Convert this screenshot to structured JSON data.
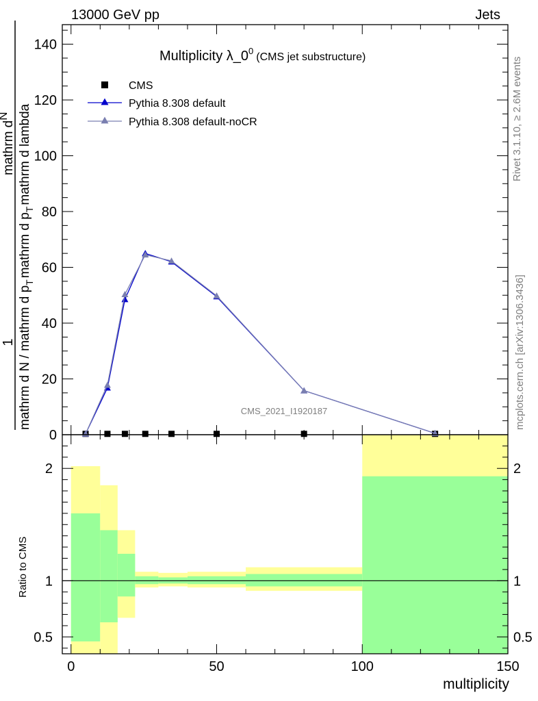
{
  "header": {
    "left": "13000 GeV pp",
    "right": "Jets"
  },
  "side_labels": {
    "rivet": "Rivet 3.1.10, ≥ 2.6M events",
    "mcplots": "mcplots.cern.ch [arXiv:1306.3436]"
  },
  "watermark": "CMS_2021_I1920187",
  "title_main": "Multiplicity λ_0",
  "title_sup": "0",
  "title_sub": "(CMS jet substructure)",
  "ylabel_main": {
    "numerator": "1",
    "line1": "mathrm d N / mathrm d p",
    "line1_sub": "T",
    "line2": "mathrm d p",
    "line2_sub": "T",
    "line2_rest": "mathrm d lambda",
    "frac_num": "mathrm d",
    "frac_num2": "N"
  },
  "ylabel_ratio": "Ratio to CMS",
  "xlabel": "multiplicity",
  "legend": [
    {
      "label": "CMS",
      "marker": "square",
      "color": "#000000"
    },
    {
      "label": "Pythia 8.308 default",
      "marker": "triangle",
      "color": "#0000cc"
    },
    {
      "label": "Pythia 8.308 default-noCR",
      "marker": "triangle",
      "color": "#7a7fb0"
    }
  ],
  "chart_data": {
    "type": "line",
    "xlim": [
      -3,
      150
    ],
    "main_ylim": [
      0,
      147
    ],
    "ratio_ylim": [
      0.35,
      2.3
    ],
    "x_ticks": [
      0,
      50,
      100,
      150
    ],
    "main_y_ticks": [
      0,
      20,
      40,
      60,
      80,
      100,
      120,
      140
    ],
    "ratio_y_ticks": [
      0.5,
      1,
      2
    ],
    "series": [
      {
        "name": "CMS",
        "color": "#000000",
        "x": [
          5,
          12.5,
          18.5,
          25.5,
          34.5,
          50,
          80,
          125
        ],
        "y": [
          0.3,
          0.3,
          0.3,
          0.3,
          0.3,
          0.3,
          0.3,
          0.3
        ]
      },
      {
        "name": "Pythia 8.308 default",
        "color": "#0000cc",
        "x": [
          5,
          12.5,
          18.5,
          25.5,
          34.5,
          50,
          80,
          125
        ],
        "y": [
          0.3,
          16.8,
          48.5,
          65.0,
          62.0,
          49.5,
          15.8,
          0.5
        ]
      },
      {
        "name": "Pythia 8.308 default-noCR",
        "color": "#7a7fb0",
        "x": [
          5,
          12.5,
          18.5,
          25.5,
          34.5,
          50,
          80,
          125
        ],
        "y": [
          0.3,
          17.8,
          50.3,
          64.5,
          62.3,
          49.8,
          15.8,
          0.5
        ]
      }
    ],
    "ratio_bands": [
      {
        "x0": 0,
        "x1": 10,
        "yellow": [
          0.35,
          2.02
        ],
        "green": [
          0.46,
          1.6
        ]
      },
      {
        "x0": 10,
        "x1": 16,
        "yellow": [
          0.35,
          1.85
        ],
        "green": [
          0.63,
          1.45
        ]
      },
      {
        "x0": 16,
        "x1": 22,
        "yellow": [
          0.67,
          1.45
        ],
        "green": [
          0.86,
          1.24
        ]
      },
      {
        "x0": 22,
        "x1": 30,
        "yellow": [
          0.94,
          1.08
        ],
        "green": [
          0.97,
          1.04
        ]
      },
      {
        "x0": 30,
        "x1": 40,
        "yellow": [
          0.95,
          1.07
        ],
        "green": [
          0.975,
          1.03
        ]
      },
      {
        "x0": 40,
        "x1": 60,
        "yellow": [
          0.94,
          1.08
        ],
        "green": [
          0.97,
          1.04
        ]
      },
      {
        "x0": 60,
        "x1": 100,
        "yellow": [
          0.91,
          1.12
        ],
        "green": [
          0.95,
          1.06
        ]
      },
      {
        "x0": 100,
        "x1": 150,
        "yellow": [
          0.35,
          2.3
        ],
        "green": [
          0.35,
          1.93
        ]
      }
    ],
    "ratio_reference": 1
  },
  "colors": {
    "band_yellow": "#ffff99",
    "band_green": "#99ff99"
  }
}
